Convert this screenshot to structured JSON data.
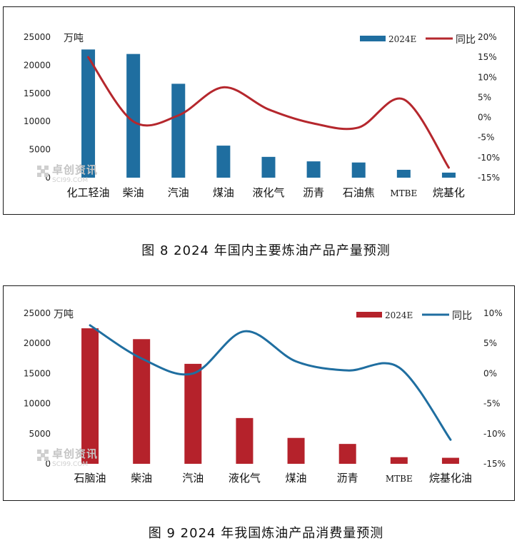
{
  "charts": [
    {
      "caption": "图 8  2024 年国内主要炼油产品产量预测",
      "watermark": {
        "cn": "卓创资讯",
        "en": "SCI99.COM"
      },
      "chart_data": {
        "type": "bar",
        "categories": [
          "化工轻油",
          "柴油",
          "汽油",
          "煤油",
          "液化气",
          "沥青",
          "石油焦",
          "MTBE",
          "烷基化"
        ],
        "series": [
          {
            "name": "2024E",
            "type": "bar",
            "axis": "left",
            "color": "#1f6ea0",
            "values": [
              22800,
              22000,
              16700,
              5700,
              3700,
              2900,
              2700,
              1400,
              900
            ]
          },
          {
            "name": "同比",
            "type": "line",
            "axis": "right",
            "color": "#b5272d",
            "values": [
              15,
              -1,
              0.5,
              7.5,
              2,
              -1.5,
              -2.5,
              4.5,
              -12.5
            ]
          }
        ],
        "y_left": {
          "label": "万吨",
          "min": 0,
          "max": 25000,
          "ticks": [
            "0",
            "5000",
            "10000",
            "15000",
            "20000",
            "25000"
          ]
        },
        "y_right": {
          "min": -15,
          "max": 20,
          "ticks": [
            "-15%",
            "-10%",
            "-5%",
            "0%",
            "5%",
            "10%",
            "15%",
            "20%"
          ]
        },
        "legend": "top-right",
        "grid": false
      }
    },
    {
      "caption": "图 9  2024 年我国炼油产品消费量预测",
      "watermark": {
        "cn": "卓创资讯",
        "en": "SCI99.COM"
      },
      "chart_data": {
        "type": "bar",
        "categories": [
          "石脑油",
          "柴油",
          "汽油",
          "液化气",
          "煤油",
          "沥青",
          "MTBE",
          "烷基化油"
        ],
        "series": [
          {
            "name": "2024E",
            "type": "bar",
            "axis": "left",
            "color": "#b5222b",
            "values": [
              22500,
              20700,
              16600,
              7600,
              4300,
              3300,
              1100,
              1000
            ]
          },
          {
            "name": "同比",
            "type": "line",
            "axis": "right",
            "color": "#1f6ea0",
            "values": [
              8,
              2.5,
              0,
              7,
              2,
              0.5,
              1,
              -11
            ]
          }
        ],
        "y_left": {
          "label": "万吨",
          "min": 0,
          "max": 25000,
          "ticks": [
            "0",
            "5000",
            "10000",
            "15000",
            "20000",
            "25000"
          ]
        },
        "y_right": {
          "min": -15,
          "max": 10,
          "ticks": [
            "-15%",
            "-10%",
            "-5%",
            "0%",
            "5%",
            "10%"
          ]
        },
        "legend": "top-right",
        "grid": false
      }
    }
  ]
}
